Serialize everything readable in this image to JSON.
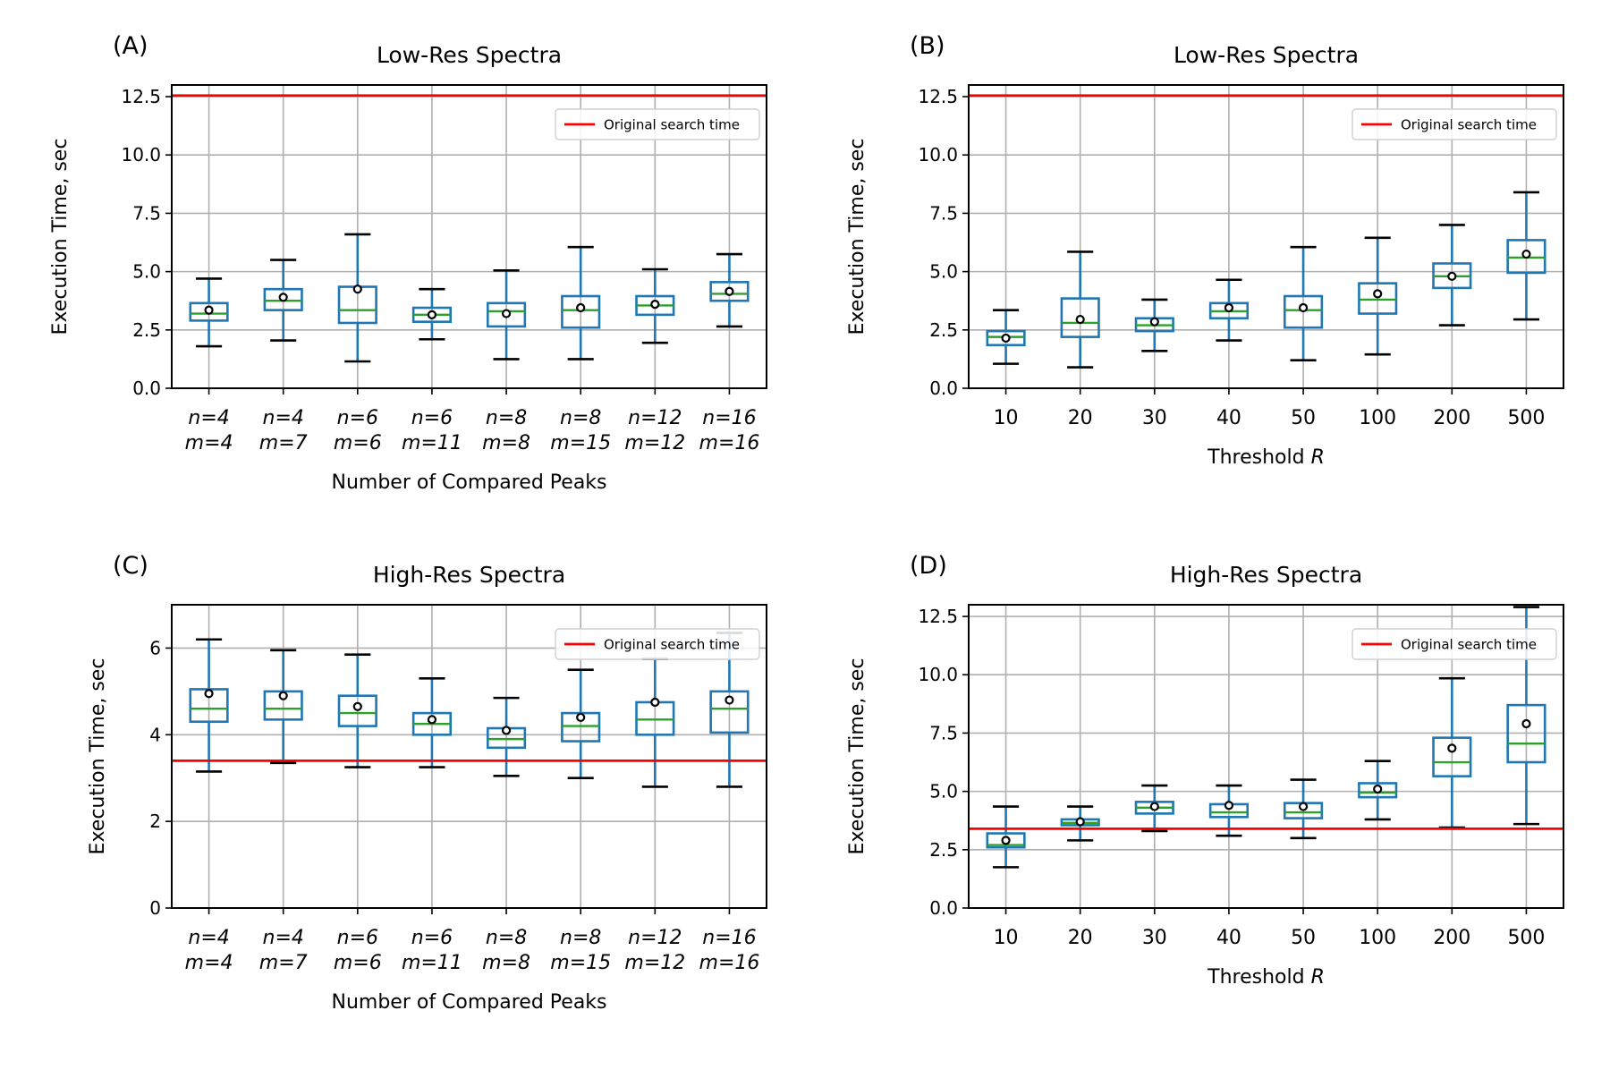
{
  "chart_data": [
    {
      "type": "box",
      "panel_label": "(A)",
      "title": "Low-Res Spectra",
      "xlabel": "Number of Compared Peaks",
      "xlabel_var": "",
      "ylabel": "Execution Time, sec",
      "ylim": [
        0,
        13
      ],
      "yticks": [
        0,
        2.5,
        5,
        7.5,
        10,
        12.5
      ],
      "ytick_labels": [
        "0.0",
        "2.5",
        "5.0",
        "7.5",
        "10.0",
        "12.5"
      ],
      "italic_categories": true,
      "categories": [
        [
          "n=4",
          "m=4"
        ],
        [
          "n=4",
          "m=7"
        ],
        [
          "n=6",
          "m=6"
        ],
        [
          "n=6",
          "m=11"
        ],
        [
          "n=8",
          "m=8"
        ],
        [
          "n=8",
          "m=15"
        ],
        [
          "n=12",
          "m=12"
        ],
        [
          "n=16",
          "m=16"
        ]
      ],
      "boxes": [
        {
          "whislo": 1.8,
          "q1": 2.9,
          "med": 3.2,
          "q3": 3.65,
          "whishi": 4.7,
          "mean": 3.35
        },
        {
          "whislo": 2.05,
          "q1": 3.35,
          "med": 3.75,
          "q3": 4.25,
          "whishi": 5.5,
          "mean": 3.9
        },
        {
          "whislo": 1.15,
          "q1": 2.8,
          "med": 3.35,
          "q3": 4.35,
          "whishi": 6.6,
          "mean": 4.25
        },
        {
          "whislo": 2.1,
          "q1": 2.85,
          "med": 3.15,
          "q3": 3.45,
          "whishi": 4.25,
          "mean": 3.15
        },
        {
          "whislo": 1.25,
          "q1": 2.65,
          "med": 3.3,
          "q3": 3.65,
          "whishi": 5.05,
          "mean": 3.2
        },
        {
          "whislo": 1.25,
          "q1": 2.6,
          "med": 3.35,
          "q3": 3.95,
          "whishi": 6.05,
          "mean": 3.45
        },
        {
          "whislo": 1.95,
          "q1": 3.15,
          "med": 3.55,
          "q3": 3.95,
          "whishi": 5.1,
          "mean": 3.6
        },
        {
          "whislo": 2.65,
          "q1": 3.75,
          "med": 4.05,
          "q3": 4.55,
          "whishi": 5.75,
          "mean": 4.15
        }
      ],
      "reference_line": {
        "label": "Original search time",
        "value": 12.55,
        "color": "#ff0000"
      }
    },
    {
      "type": "box",
      "panel_label": "(B)",
      "title": "Low-Res Spectra",
      "xlabel": "Threshold ",
      "xlabel_var": "R",
      "ylabel": "Execution Time, sec",
      "ylim": [
        0,
        13
      ],
      "yticks": [
        0,
        2.5,
        5,
        7.5,
        10,
        12.5
      ],
      "ytick_labels": [
        "0.0",
        "2.5",
        "5.0",
        "7.5",
        "10.0",
        "12.5"
      ],
      "italic_categories": false,
      "categories": [
        [
          "10"
        ],
        [
          "20"
        ],
        [
          "30"
        ],
        [
          "40"
        ],
        [
          "50"
        ],
        [
          "100"
        ],
        [
          "200"
        ],
        [
          "500"
        ]
      ],
      "boxes": [
        {
          "whislo": 1.05,
          "q1": 1.85,
          "med": 2.2,
          "q3": 2.45,
          "whishi": 3.35,
          "mean": 2.15
        },
        {
          "whislo": 0.9,
          "q1": 2.2,
          "med": 2.8,
          "q3": 3.85,
          "whishi": 5.85,
          "mean": 2.95
        },
        {
          "whislo": 1.6,
          "q1": 2.45,
          "med": 2.7,
          "q3": 3.0,
          "whishi": 3.8,
          "mean": 2.85
        },
        {
          "whislo": 2.05,
          "q1": 3.0,
          "med": 3.3,
          "q3": 3.65,
          "whishi": 4.65,
          "mean": 3.45
        },
        {
          "whislo": 1.2,
          "q1": 2.6,
          "med": 3.35,
          "q3": 3.95,
          "whishi": 6.05,
          "mean": 3.45
        },
        {
          "whislo": 1.45,
          "q1": 3.2,
          "med": 3.8,
          "q3": 4.5,
          "whishi": 6.45,
          "mean": 4.05
        },
        {
          "whislo": 2.7,
          "q1": 4.3,
          "med": 4.8,
          "q3": 5.35,
          "whishi": 7.0,
          "mean": 4.8
        },
        {
          "whislo": 2.95,
          "q1": 4.95,
          "med": 5.6,
          "q3": 6.35,
          "whishi": 8.4,
          "mean": 5.75
        }
      ],
      "reference_line": {
        "label": "Original search time",
        "value": 12.55,
        "color": "#ff0000"
      }
    },
    {
      "type": "box",
      "panel_label": "(C)",
      "title": "High-Res Spectra",
      "xlabel": "Number of Compared Peaks",
      "xlabel_var": "",
      "ylabel": "Execution Time, sec",
      "ylim": [
        0,
        7
      ],
      "yticks": [
        0,
        2,
        4,
        6
      ],
      "ytick_labels": [
        "0",
        "2",
        "4",
        "6"
      ],
      "italic_categories": true,
      "categories": [
        [
          "n=4",
          "m=4"
        ],
        [
          "n=4",
          "m=7"
        ],
        [
          "n=6",
          "m=6"
        ],
        [
          "n=6",
          "m=11"
        ],
        [
          "n=8",
          "m=8"
        ],
        [
          "n=8",
          "m=15"
        ],
        [
          "n=12",
          "m=12"
        ],
        [
          "n=16",
          "m=16"
        ]
      ],
      "boxes": [
        {
          "whislo": 3.15,
          "q1": 4.3,
          "med": 4.6,
          "q3": 5.05,
          "whishi": 6.2,
          "mean": 4.95
        },
        {
          "whislo": 3.35,
          "q1": 4.35,
          "med": 4.6,
          "q3": 5.0,
          "whishi": 5.95,
          "mean": 4.9
        },
        {
          "whislo": 3.25,
          "q1": 4.2,
          "med": 4.5,
          "q3": 4.9,
          "whishi": 5.85,
          "mean": 4.65
        },
        {
          "whislo": 3.25,
          "q1": 4.0,
          "med": 4.25,
          "q3": 4.5,
          "whishi": 5.3,
          "mean": 4.35
        },
        {
          "whislo": 3.05,
          "q1": 3.7,
          "med": 3.9,
          "q3": 4.15,
          "whishi": 4.85,
          "mean": 4.1
        },
        {
          "whislo": 3.0,
          "q1": 3.85,
          "med": 4.2,
          "q3": 4.5,
          "whishi": 5.5,
          "mean": 4.4
        },
        {
          "whislo": 2.8,
          "q1": 4.0,
          "med": 4.35,
          "q3": 4.75,
          "whishi": 5.75,
          "mean": 4.75
        },
        {
          "whislo": 2.8,
          "q1": 4.05,
          "med": 4.6,
          "q3": 5.0,
          "whishi": 6.35,
          "mean": 4.8
        }
      ],
      "reference_line": {
        "label": "Original search time",
        "value": 3.4,
        "color": "#ff0000"
      }
    },
    {
      "type": "box",
      "panel_label": "(D)",
      "title": "High-Res Spectra",
      "xlabel": "Threshold ",
      "xlabel_var": "R",
      "ylabel": "Execution Time, sec",
      "ylim": [
        0,
        13
      ],
      "yticks": [
        0,
        2.5,
        5,
        7.5,
        10,
        12.5
      ],
      "ytick_labels": [
        "0.0",
        "2.5",
        "5.0",
        "7.5",
        "10.0",
        "12.5"
      ],
      "italic_categories": false,
      "categories": [
        [
          "10"
        ],
        [
          "20"
        ],
        [
          "30"
        ],
        [
          "40"
        ],
        [
          "50"
        ],
        [
          "100"
        ],
        [
          "200"
        ],
        [
          "500"
        ]
      ],
      "boxes": [
        {
          "whislo": 1.75,
          "q1": 2.6,
          "med": 2.7,
          "q3": 3.2,
          "whishi": 4.35,
          "mean": 2.9
        },
        {
          "whislo": 2.9,
          "q1": 3.55,
          "med": 3.65,
          "q3": 3.8,
          "whishi": 4.35,
          "mean": 3.7
        },
        {
          "whislo": 3.3,
          "q1": 4.05,
          "med": 4.3,
          "q3": 4.55,
          "whishi": 5.25,
          "mean": 4.35
        },
        {
          "whislo": 3.1,
          "q1": 3.9,
          "med": 4.1,
          "q3": 4.45,
          "whishi": 5.25,
          "mean": 4.4
        },
        {
          "whislo": 3.0,
          "q1": 3.85,
          "med": 4.1,
          "q3": 4.5,
          "whishi": 5.5,
          "mean": 4.35
        },
        {
          "whislo": 3.8,
          "q1": 4.75,
          "med": 4.95,
          "q3": 5.35,
          "whishi": 6.3,
          "mean": 5.1
        },
        {
          "whislo": 3.45,
          "q1": 5.65,
          "med": 6.25,
          "q3": 7.3,
          "whishi": 9.85,
          "mean": 6.85
        },
        {
          "whislo": 3.6,
          "q1": 6.25,
          "med": 7.05,
          "q3": 8.7,
          "whishi": 12.9,
          "mean": 7.9
        }
      ],
      "reference_line": {
        "label": "Original search time",
        "value": 3.4,
        "color": "#ff0000"
      }
    }
  ],
  "colors": {
    "box": "#1f77b4",
    "median": "#2ca02c",
    "whisker_cap": "#000000",
    "grid": "#b0b0b0",
    "reference_line": "#ff0000"
  }
}
